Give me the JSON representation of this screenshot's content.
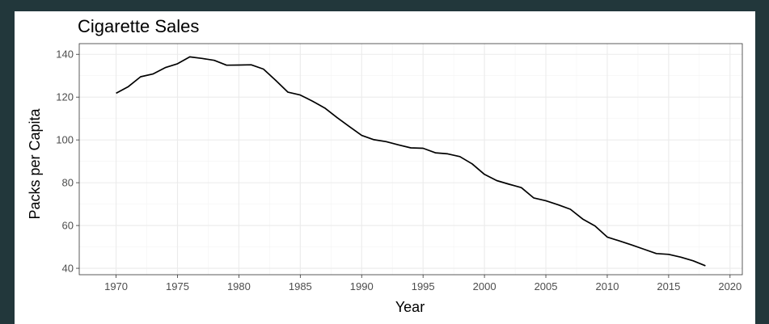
{
  "chart_data": {
    "type": "line",
    "title": "Cigarette Sales",
    "xlabel": "Year",
    "ylabel": "Packs per Capita",
    "xlim": [
      1967,
      2021
    ],
    "ylim": [
      37,
      145
    ],
    "x_ticks": [
      1970,
      1975,
      1980,
      1985,
      1990,
      1995,
      2000,
      2005,
      2010,
      2015,
      2020
    ],
    "y_ticks": [
      40,
      60,
      80,
      100,
      120,
      140
    ],
    "grid": true,
    "series": [
      {
        "x": [
          1970,
          1971,
          1972,
          1973,
          1974,
          1975,
          1976,
          1977,
          1978,
          1979,
          1980,
          1981,
          1982,
          1983,
          1984,
          1985,
          1986,
          1987,
          1988,
          1989,
          1990,
          1991,
          1992,
          1993,
          1994,
          1995,
          1996,
          1997,
          1998,
          1999,
          2000,
          2001,
          2002,
          2003,
          2004,
          2005,
          2006,
          2007,
          2008,
          2009,
          2010,
          2011,
          2012,
          2013,
          2014,
          2015,
          2016,
          2017,
          2018
        ],
        "y": [
          121.8,
          124.9,
          129.5,
          130.8,
          133.8,
          135.6,
          138.8,
          138.1,
          137.2,
          134.9,
          135.0,
          135.1,
          133.1,
          127.8,
          122.3,
          121.0,
          118.1,
          114.9,
          110.4,
          106.2,
          102.1,
          100.1,
          99.2,
          97.7,
          96.3,
          96.1,
          94.0,
          93.5,
          92.2,
          88.8,
          83.9,
          81.0,
          79.3,
          77.7,
          72.9,
          71.6,
          69.7,
          67.6,
          63.0,
          59.8,
          54.6,
          52.8,
          50.9,
          48.9,
          46.9,
          46.5,
          45.2,
          43.5,
          41.2
        ]
      }
    ]
  }
}
